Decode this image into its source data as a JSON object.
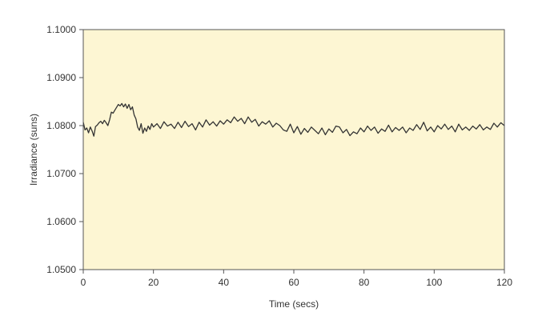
{
  "colors": {
    "plot_background": "#fdf6d3",
    "frame": "#555555",
    "trace": "#333333"
  },
  "chart_data": {
    "type": "line",
    "title": "",
    "xlabel": "Time (secs)",
    "ylabel": "Irradiance (suns)",
    "xlim": [
      0,
      120
    ],
    "ylim": [
      1.05,
      1.1
    ],
    "grid": false,
    "legend": "none",
    "x_ticks": [
      0,
      20,
      40,
      60,
      80,
      100,
      120
    ],
    "x_tick_labels": [
      "0",
      "20",
      "40",
      "60",
      "80",
      "100",
      "120"
    ],
    "y_ticks": [
      1.05,
      1.06,
      1.07,
      1.08,
      1.09,
      1.1
    ],
    "y_tick_labels": [
      "1.0500",
      "1.0600",
      "1.0700",
      "1.0800",
      "1.0900",
      "1.1000"
    ],
    "series": [
      {
        "x": [
          0,
          0.5,
          1,
          1.5,
          2,
          2.5,
          3,
          3.5,
          4,
          4.5,
          5,
          5.5,
          6,
          6.5,
          7,
          7.5,
          8,
          8.5,
          9,
          9.5,
          10,
          10.5,
          11,
          11.5,
          12,
          12.5,
          13,
          13.5,
          14,
          14.5,
          15,
          15.5,
          16,
          16.5,
          17,
          17.5,
          18,
          18.5,
          19,
          19.5,
          20,
          21,
          22,
          23,
          24,
          25,
          26,
          27,
          28,
          29,
          30,
          31,
          32,
          33,
          34,
          35,
          36,
          37,
          38,
          39,
          40,
          41,
          42,
          43,
          44,
          45,
          46,
          47,
          48,
          49,
          50,
          51,
          52,
          53,
          54,
          55,
          56,
          57,
          58,
          59,
          60,
          61,
          62,
          63,
          64,
          65,
          66,
          67,
          68,
          69,
          70,
          71,
          72,
          73,
          74,
          75,
          76,
          77,
          78,
          79,
          80,
          81,
          82,
          83,
          84,
          85,
          86,
          87,
          88,
          89,
          90,
          91,
          92,
          93,
          94,
          95,
          96,
          97,
          98,
          99,
          100,
          101,
          102,
          103,
          104,
          105,
          106,
          107,
          108,
          109,
          110,
          111,
          112,
          113,
          114,
          115,
          116,
          117,
          118,
          119,
          120
        ],
        "y": [
          1.0807,
          1.0791,
          1.0795,
          1.0785,
          1.0797,
          1.0789,
          1.0778,
          1.0798,
          1.0801,
          1.0806,
          1.0809,
          1.0804,
          1.0811,
          1.0806,
          1.08,
          1.0812,
          1.0828,
          1.0826,
          1.0832,
          1.0838,
          1.0844,
          1.0841,
          1.0846,
          1.0839,
          1.0845,
          1.0836,
          1.0844,
          1.0833,
          1.0839,
          1.0822,
          1.0814,
          1.0797,
          1.079,
          1.0804,
          1.0784,
          1.0795,
          1.0788,
          1.0799,
          1.0792,
          1.0804,
          1.0797,
          1.0804,
          1.0794,
          1.0808,
          1.0799,
          1.0803,
          1.0794,
          1.0807,
          1.0796,
          1.0809,
          1.0798,
          1.0804,
          1.0791,
          1.0807,
          1.0797,
          1.0812,
          1.0801,
          1.0808,
          1.0799,
          1.081,
          1.0803,
          1.0812,
          1.0806,
          1.0818,
          1.0809,
          1.0815,
          1.0804,
          1.0818,
          1.0807,
          1.0813,
          1.0799,
          1.0808,
          1.0803,
          1.081,
          1.0797,
          1.0805,
          1.08,
          1.0791,
          1.0788,
          1.0803,
          1.0785,
          1.0798,
          1.0782,
          1.0794,
          1.0786,
          1.0797,
          1.079,
          1.0783,
          1.0795,
          1.0781,
          1.0793,
          1.0786,
          1.0799,
          1.0797,
          1.0785,
          1.0792,
          1.0779,
          1.0787,
          1.0783,
          1.0795,
          1.0787,
          1.0799,
          1.079,
          1.0797,
          1.0784,
          1.0793,
          1.0788,
          1.0801,
          1.0787,
          1.0796,
          1.079,
          1.0797,
          1.0785,
          1.0795,
          1.079,
          1.0802,
          1.0792,
          1.0807,
          1.0789,
          1.0797,
          1.0787,
          1.08,
          1.0793,
          1.0803,
          1.0792,
          1.0799,
          1.0787,
          1.0803,
          1.0791,
          1.0797,
          1.079,
          1.0799,
          1.0793,
          1.0802,
          1.0791,
          1.0797,
          1.0792,
          1.0805,
          1.0797,
          1.0806,
          1.08
        ]
      }
    ]
  }
}
